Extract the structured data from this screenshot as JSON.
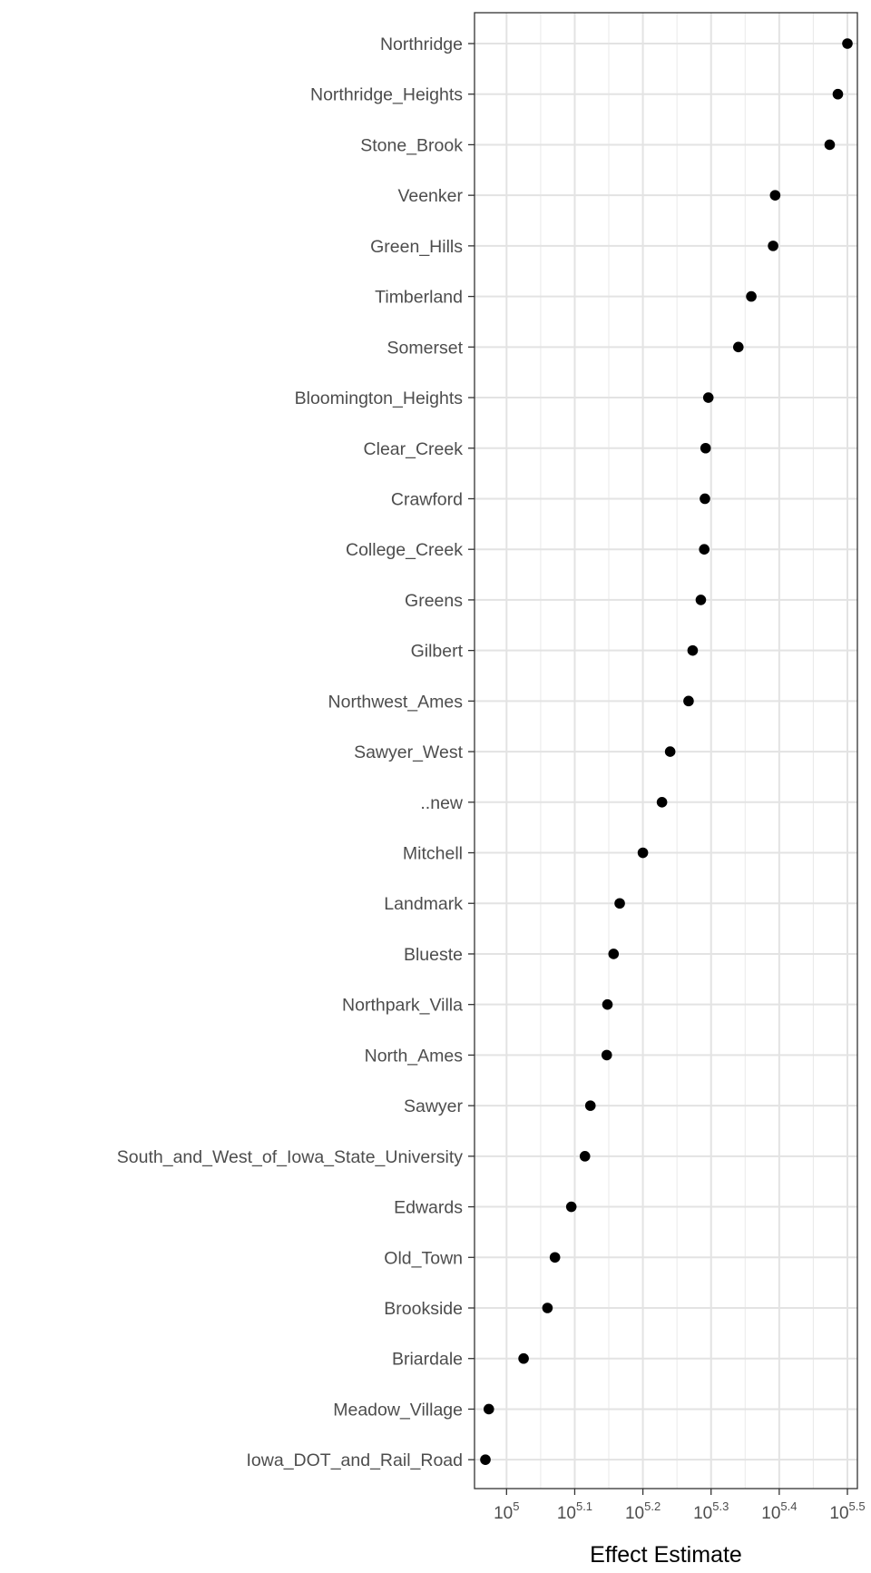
{
  "chart_data": {
    "type": "scatter",
    "title": "",
    "xlabel": "Effect Estimate",
    "ylabel": "",
    "x_scale": "log10",
    "xlim_log10": [
      4.957,
      5.5
    ],
    "x_ticks": [
      {
        "base": "10",
        "exp": "5",
        "value_log10": 5.0
      },
      {
        "base": "10",
        "exp": "5.1",
        "value_log10": 5.1
      },
      {
        "base": "10",
        "exp": "5.2",
        "value_log10": 5.2
      },
      {
        "base": "10",
        "exp": "5.3",
        "value_log10": 5.3
      },
      {
        "base": "10",
        "exp": "5.4",
        "value_log10": 5.4
      },
      {
        "base": "10",
        "exp": "5.5",
        "value_log10": 5.5
      }
    ],
    "grid": true,
    "categories": [
      "Northridge",
      "Northridge_Heights",
      "Stone_Brook",
      "Veenker",
      "Green_Hills",
      "Timberland",
      "Somerset",
      "Bloomington_Heights",
      "Clear_Creek",
      "Crawford",
      "College_Creek",
      "Greens",
      "Gilbert",
      "Northwest_Ames",
      "Sawyer_West",
      "..new",
      "Mitchell",
      "Landmark",
      "Blueste",
      "Northpark_Villa",
      "North_Ames",
      "Sawyer",
      "South_and_West_of_Iowa_State_University",
      "Edwards",
      "Old_Town",
      "Brookside",
      "Briardale",
      "Meadow_Village",
      "Iowa_DOT_and_Rail_Road"
    ],
    "values_log10": [
      5.5,
      5.486,
      5.474,
      5.394,
      5.391,
      5.359,
      5.34,
      5.296,
      5.292,
      5.291,
      5.29,
      5.285,
      5.273,
      5.267,
      5.24,
      5.228,
      5.2,
      5.166,
      5.157,
      5.148,
      5.147,
      5.123,
      5.115,
      5.095,
      5.071,
      5.06,
      5.025,
      4.974,
      4.969
    ]
  }
}
